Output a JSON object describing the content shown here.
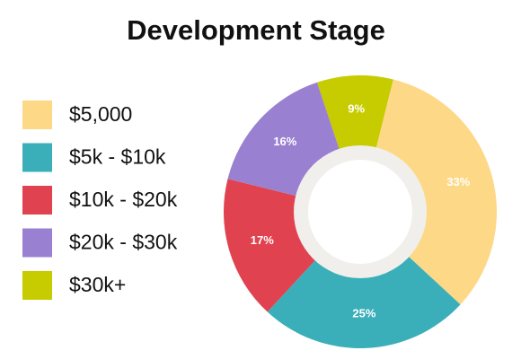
{
  "chart_data": {
    "type": "donut",
    "title": "Development Stage",
    "categories": [
      "$5,000",
      "$5k - $10k",
      "$10k - $20k",
      "$20k - $30k",
      "$30k+"
    ],
    "values": [
      33,
      25,
      17,
      16,
      9
    ],
    "value_labels": [
      "33%",
      "25%",
      "17%",
      "16%",
      "9%"
    ],
    "colors": [
      "#fdd886",
      "#3aafb9",
      "#e0434f",
      "#9a80d0",
      "#c6cc00"
    ],
    "legend": "left"
  }
}
